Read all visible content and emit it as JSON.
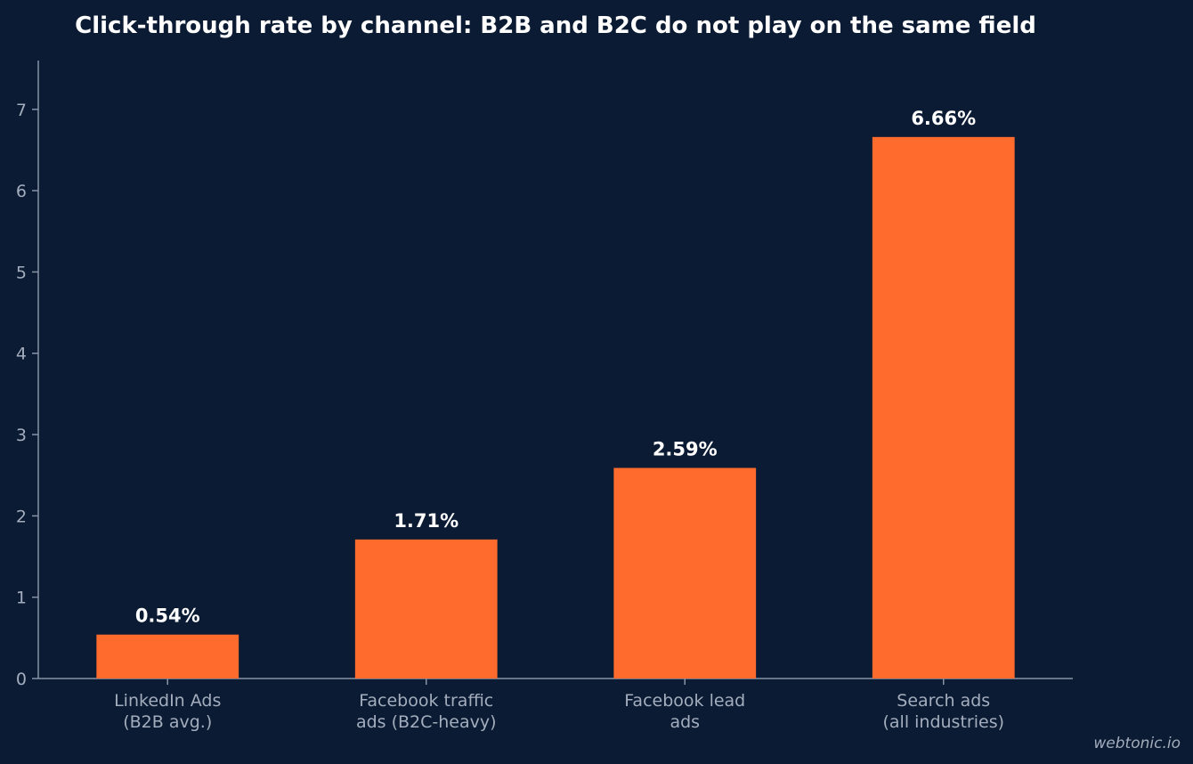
{
  "chart_data": {
    "type": "bar",
    "title": "Click-through rate by channel: B2B and B2C do not play on the same field",
    "xlabel": "",
    "ylabel": "",
    "categories": [
      [
        "LinkedIn Ads",
        "(B2B avg.)"
      ],
      [
        "Facebook traffic",
        "ads (B2C-heavy)"
      ],
      [
        "Facebook lead",
        "ads"
      ],
      [
        "Search ads",
        "(all industries)"
      ]
    ],
    "values": [
      0.54,
      1.71,
      2.59,
      6.66
    ],
    "value_labels": [
      "0.54%",
      "1.71%",
      "2.59%",
      "6.66%"
    ],
    "ylim": [
      0,
      7.6
    ],
    "yticks": [
      0,
      1,
      2,
      3,
      4,
      5,
      6,
      7
    ],
    "grid": false,
    "bar_color": "#ff6b2c",
    "background_color": "#0b1b33"
  },
  "watermark": "webtonic.io"
}
